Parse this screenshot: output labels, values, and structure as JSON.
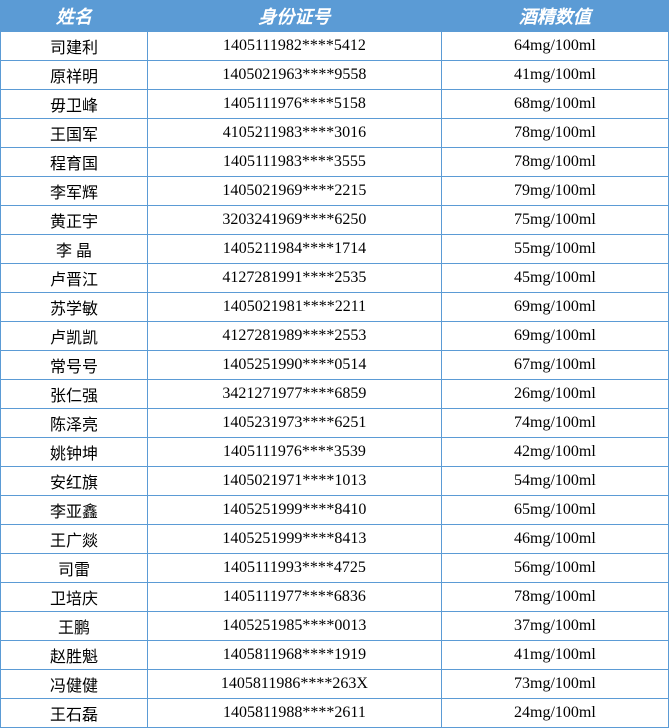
{
  "table": {
    "columns": [
      "姓名",
      "身份证号",
      "酒精数值"
    ],
    "header_bg": "#5b9bd5",
    "header_color": "#ffffff",
    "border_color": "#5b9bd5",
    "cell_bg": "#ffffff",
    "cell_color": "#000000",
    "header_fontsize": 18,
    "cell_fontsize": 16,
    "col_widths_pct": [
      22,
      44,
      34
    ],
    "rows": [
      [
        "司建利",
        "1405111982****5412",
        "64mg/100ml"
      ],
      [
        "原祥明",
        "1405021963****9558",
        "41mg/100ml"
      ],
      [
        "毋卫峰",
        "1405111976****5158",
        "68mg/100ml"
      ],
      [
        "王国军",
        "4105211983****3016",
        "78mg/100ml"
      ],
      [
        "程育国",
        "1405111983****3555",
        "78mg/100ml"
      ],
      [
        "李军辉",
        "1405021969****2215",
        "79mg/100ml"
      ],
      [
        "黄正宇",
        "3203241969****6250",
        "75mg/100ml"
      ],
      [
        "李 晶",
        "1405211984****1714",
        "55mg/100ml"
      ],
      [
        "卢晋江",
        "4127281991****2535",
        "45mg/100ml"
      ],
      [
        "苏学敏",
        "1405021981****2211",
        "69mg/100ml"
      ],
      [
        "卢凯凯",
        "4127281989****2553",
        "69mg/100ml"
      ],
      [
        "常号号",
        "1405251990****0514",
        "67mg/100ml"
      ],
      [
        "张仁强",
        "3421271977****6859",
        "26mg/100ml"
      ],
      [
        "陈泽亮",
        "1405231973****6251",
        "74mg/100ml"
      ],
      [
        "姚钟坤",
        "1405111976****3539",
        "42mg/100ml"
      ],
      [
        "安红旗",
        "1405021971****1013",
        "54mg/100ml"
      ],
      [
        "李亚鑫",
        "1405251999****8410",
        "65mg/100ml"
      ],
      [
        "王广燚",
        "1405251999****8413",
        "46mg/100ml"
      ],
      [
        "司雷",
        "1405111993****4725",
        "56mg/100ml"
      ],
      [
        "卫培庆",
        "1405111977****6836",
        "78mg/100ml"
      ],
      [
        "王鹏",
        "1405251985****0013",
        "37mg/100ml"
      ],
      [
        "赵胜魁",
        "1405811968****1919",
        "41mg/100ml"
      ],
      [
        "冯健健",
        "1405811986****263X",
        "73mg/100ml"
      ],
      [
        "王石磊",
        "1405811988****2611",
        "24mg/100ml"
      ]
    ]
  }
}
